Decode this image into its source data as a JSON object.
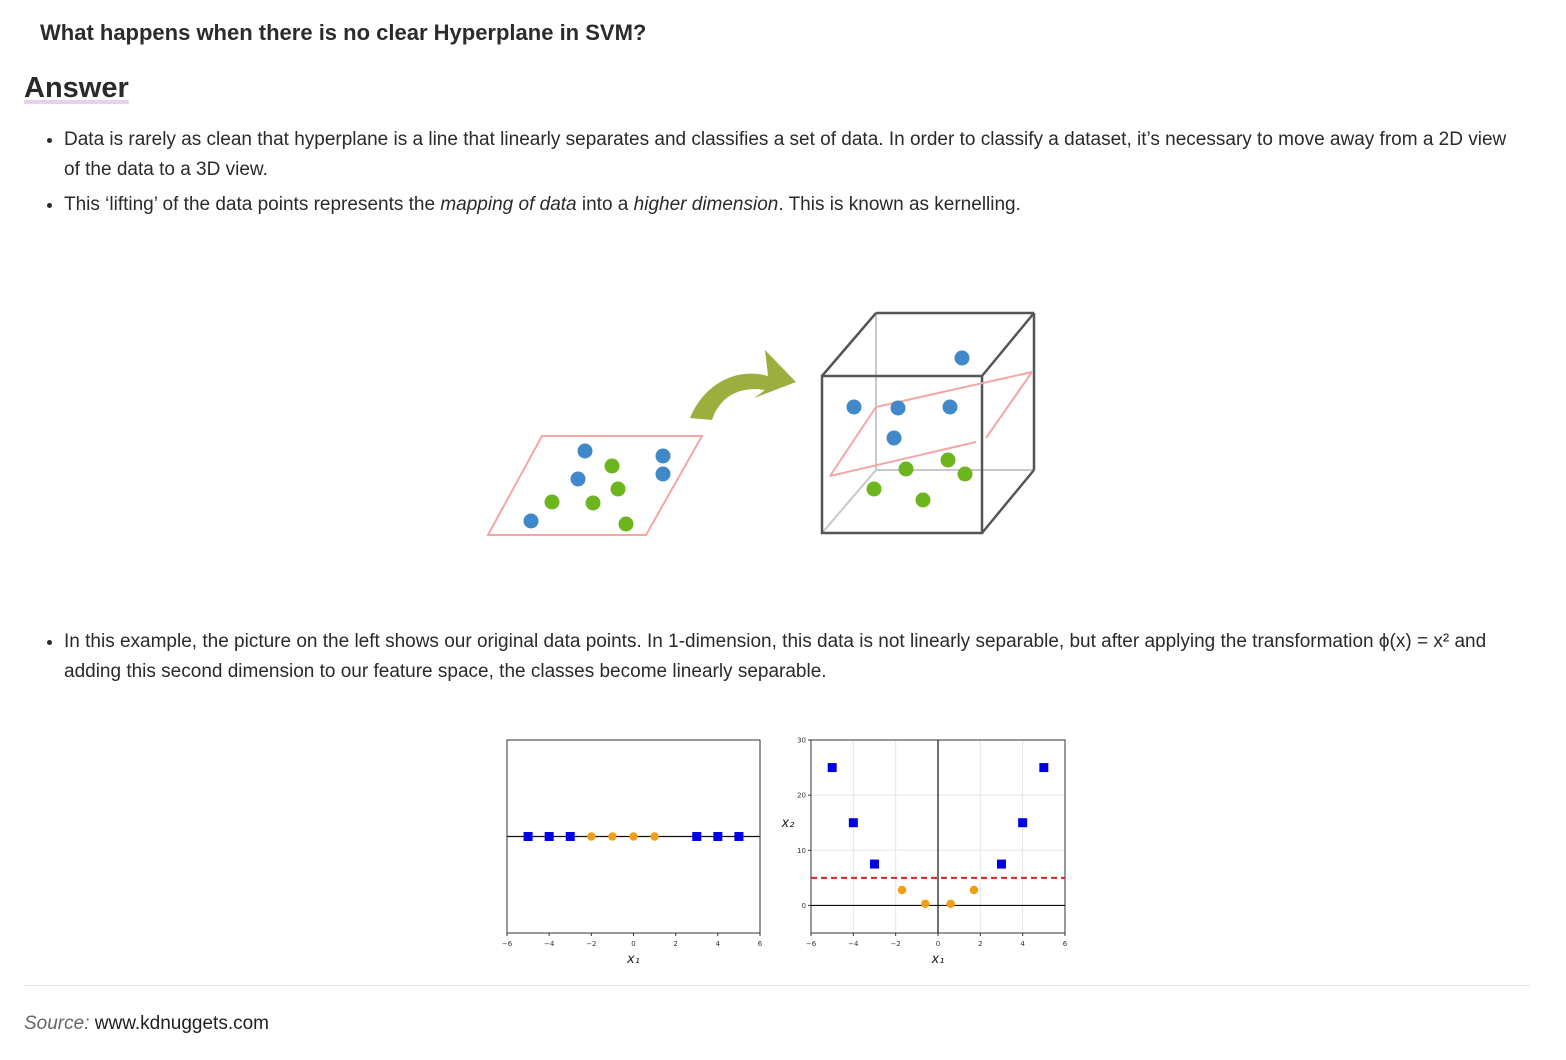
{
  "question": "What happens when there is no clear Hyperplane in SVM?",
  "answer_heading": "Answer",
  "bullets_top": [
    {
      "parts": [
        {
          "text": "Data is rarely as clean that hyperplane is a line that linearly separates and classifies a set of data. In order to classify a dataset, it’s necessary to move away from a 2D view of the data to a 3D view.",
          "style": "normal"
        }
      ]
    },
    {
      "parts": [
        {
          "text": "This ‘lifting’ of the data points represents the ",
          "style": "normal"
        },
        {
          "text": "mapping of data",
          "style": "italic"
        },
        {
          "text": " into a ",
          "style": "normal"
        },
        {
          "text": "higher dimension",
          "style": "italic"
        },
        {
          "text": ". This is known as kernelling.",
          "style": "normal"
        }
      ]
    }
  ],
  "bullets_bottom": [
    {
      "parts": [
        {
          "text": "In this example, the picture on the left shows our original data points. In 1-dimension, this data is not linearly separable, but after applying the transformation ϕ(x) = x² and adding this second dimension to our feature space, the classes become linearly separable.",
          "style": "normal"
        }
      ]
    }
  ],
  "colors": {
    "point_blue": "#3f88c9",
    "point_green": "#6db51c",
    "plane_pink": "#f3a6a6",
    "arrow_green": "#9cae3e",
    "square_blue": "#0000e6",
    "circle_orange": "#f29d12",
    "separator_red": "#d62424"
  },
  "chart_data": [
    {
      "type": "scatter",
      "title": "",
      "xlabel": "x₁",
      "ylabel": "",
      "xlim": [
        -6,
        6
      ],
      "x_ticks": [
        -6,
        -4,
        -2,
        0,
        2,
        4,
        6
      ],
      "series": [
        {
          "marker": "square",
          "color": "#0000e6",
          "x": [
            -5,
            -4,
            -3,
            3,
            4,
            5
          ],
          "y": [
            0,
            0,
            0,
            0,
            0,
            0
          ]
        },
        {
          "marker": "circle",
          "color": "#f29d12",
          "x": [
            -2,
            -1,
            0,
            1
          ],
          "y": [
            0,
            0,
            0,
            0
          ]
        }
      ]
    },
    {
      "type": "scatter",
      "title": "",
      "xlabel": "x₁",
      "ylabel": "x₂",
      "xlim": [
        -6,
        6
      ],
      "ylim": [
        -5,
        30
      ],
      "x_ticks": [
        -6,
        -4,
        -2,
        0,
        2,
        4,
        6
      ],
      "y_ticks": [
        0,
        10,
        20,
        30
      ],
      "grid": true,
      "series": [
        {
          "marker": "square",
          "color": "#0000e6",
          "x": [
            -5,
            -4,
            -3,
            3,
            4,
            5
          ],
          "y": [
            25,
            15,
            7.5,
            7.5,
            15,
            25
          ]
        },
        {
          "marker": "circle",
          "color": "#f29d12",
          "x": [
            -1.7,
            -0.6,
            0.6,
            1.7
          ],
          "y": [
            2.8,
            0.3,
            0.3,
            2.8
          ]
        }
      ],
      "hline": {
        "y": 5,
        "style": "dashed",
        "color": "#d62424"
      }
    }
  ],
  "source": {
    "label": "Source:",
    "site": "www.kdnuggets.com"
  }
}
